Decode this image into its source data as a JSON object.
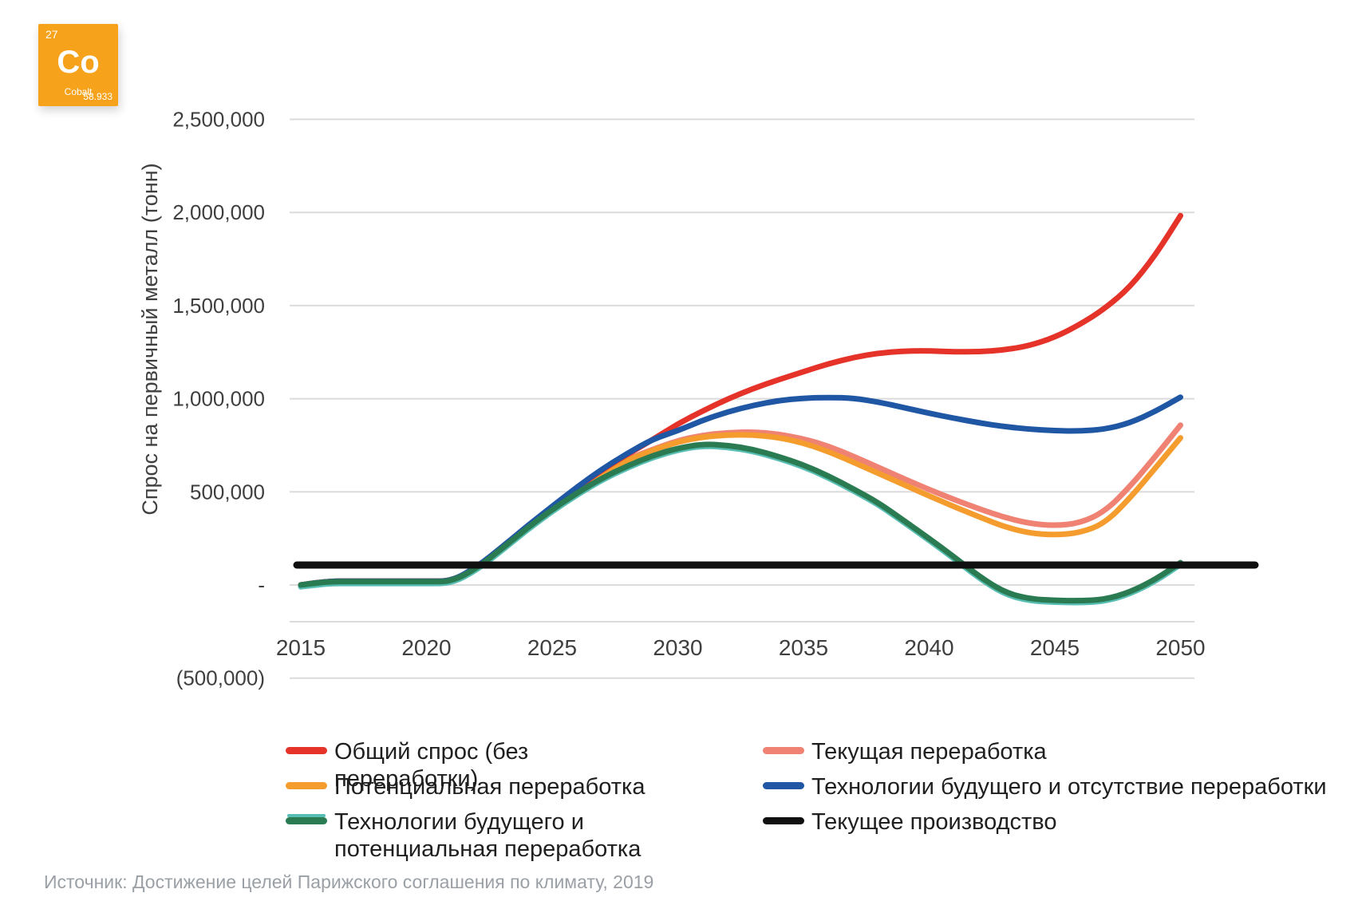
{
  "badge": {
    "number": "27",
    "symbol": "Co",
    "name": "Cobalt",
    "mass": "58.933",
    "color": "#F7A21B"
  },
  "source": {
    "text": "Источник: Достижение целей Парижского соглашения по климату, 2019"
  },
  "legend": {
    "columns": [
      {
        "items": [
          {
            "series": "total-demand",
            "label": "Общий спрос (без переработки)",
            "color": "#E5332A"
          },
          {
            "series": "potential-recycling",
            "label": "Потенциальная переработка",
            "color": "#F59C2F"
          },
          {
            "series": "future-tech-potential-recycling",
            "label": "Технологии будущего и потенциальная переработка",
            "color": "#2B7B52",
            "accent": "#58BDB2"
          }
        ]
      },
      {
        "items": [
          {
            "series": "current-recycling",
            "label": "Текущая переработка",
            "color": "#EF8272"
          },
          {
            "series": "future-tech-no-recycling",
            "label": "Технологии будущего и отсутствие переработки",
            "color": "#1F57A5"
          },
          {
            "series": "current-production",
            "label": "Текущее производство",
            "color": "#101010"
          }
        ]
      }
    ]
  },
  "chart_data": {
    "type": "line",
    "title": "",
    "xlabel": "",
    "ylabel": "Спрос на первичный металл (тонн)",
    "grid": true,
    "grid_color": "#DBDBDB",
    "tick_color": "#3F3F3F",
    "x_ticks": [
      "2015",
      "2020",
      "2025",
      "2030",
      "2035",
      "2040",
      "2045",
      "2050"
    ],
    "years_start": 2015,
    "years_end": 2050,
    "ylim": [
      -500000,
      2500000
    ],
    "y_ticks": [
      {
        "value": 2500000,
        "label": "2,500,000"
      },
      {
        "value": 2000000,
        "label": "2,000,000"
      },
      {
        "value": 1500000,
        "label": "1,500,000"
      },
      {
        "value": 1000000,
        "label": "1,000,000"
      },
      {
        "value": 500000,
        "label": "500,000"
      },
      {
        "value": 0,
        "label": "-"
      },
      {
        "value": -500000,
        "label": "(500,000)"
      }
    ],
    "category_axis_value": -197000,
    "series": [
      {
        "key": "current-recycling",
        "label": "Текущая переработка",
        "color": "#EF8272",
        "values": [
          0,
          20000,
          20000,
          20000,
          20000,
          20000,
          20000,
          95000,
          200000,
          310000,
          413000,
          518000,
          612000,
          675000,
          728000,
          775000,
          805000,
          818000,
          822000,
          810000,
          785000,
          745000,
          690000,
          630000,
          570000,
          512000,
          458000,
          408000,
          362000,
          330000,
          318000,
          332000,
          395000,
          530000,
          690000,
          858000
        ]
      },
      {
        "key": "potential-recycling",
        "label": "Потенциальная переработка",
        "color": "#F59C2F",
        "values": [
          0,
          20000,
          20000,
          20000,
          20000,
          20000,
          20000,
          95000,
          198000,
          308000,
          411000,
          515000,
          608000,
          670000,
          723000,
          768000,
          795000,
          806000,
          806000,
          792000,
          762000,
          716000,
          658000,
          598000,
          538000,
          478000,
          420000,
          365000,
          312000,
          278000,
          268000,
          280000,
          332000,
          468000,
          628000,
          790000
        ]
      },
      {
        "key": "total-demand",
        "label": "Общий спрос (без переработки)",
        "color": "#E5332A",
        "values": [
          0,
          20000,
          20000,
          20000,
          20000,
          20000,
          20000,
          95000,
          200000,
          312000,
          418000,
          522000,
          620000,
          702000,
          780000,
          865000,
          935000,
          1000000,
          1055000,
          1102000,
          1145000,
          1188000,
          1222000,
          1245000,
          1256000,
          1257000,
          1252000,
          1252000,
          1262000,
          1285000,
          1330000,
          1398000,
          1485000,
          1600000,
          1770000,
          1983000
        ]
      },
      {
        "key": "future-tech-no-recycling",
        "label": "Технологии будущего и отсутствие переработки",
        "color": "#1F57A5",
        "values": [
          0,
          20000,
          20000,
          20000,
          20000,
          20000,
          20000,
          97000,
          203000,
          316000,
          422000,
          527000,
          624000,
          707000,
          783000,
          828000,
          885000,
          930000,
          965000,
          990000,
          1003000,
          1007000,
          1003000,
          982000,
          952000,
          922000,
          895000,
          870000,
          850000,
          836000,
          828000,
          826000,
          836000,
          870000,
          932000,
          1008000
        ]
      },
      {
        "key": "future-tech-potential-recycling",
        "label": "Технологии будущего и потенциальная переработка",
        "color": "#2B7B52",
        "shadow_color": "#58BDB2",
        "shadow_offset": -10000,
        "values": [
          0,
          18000,
          18000,
          18000,
          18000,
          18000,
          18000,
          90000,
          195000,
          305000,
          405000,
          495000,
          575000,
          640000,
          695000,
          735000,
          757000,
          750000,
          728000,
          690000,
          645000,
          585000,
          515000,
          440000,
          345000,
          250000,
          150000,
          45000,
          -40000,
          -75000,
          -83000,
          -85000,
          -78000,
          -38000,
          30000,
          120000
        ]
      }
    ],
    "production_line": {
      "key": "current-production",
      "label": "Текущее производство",
      "value": 107000,
      "color": "#101010"
    }
  }
}
